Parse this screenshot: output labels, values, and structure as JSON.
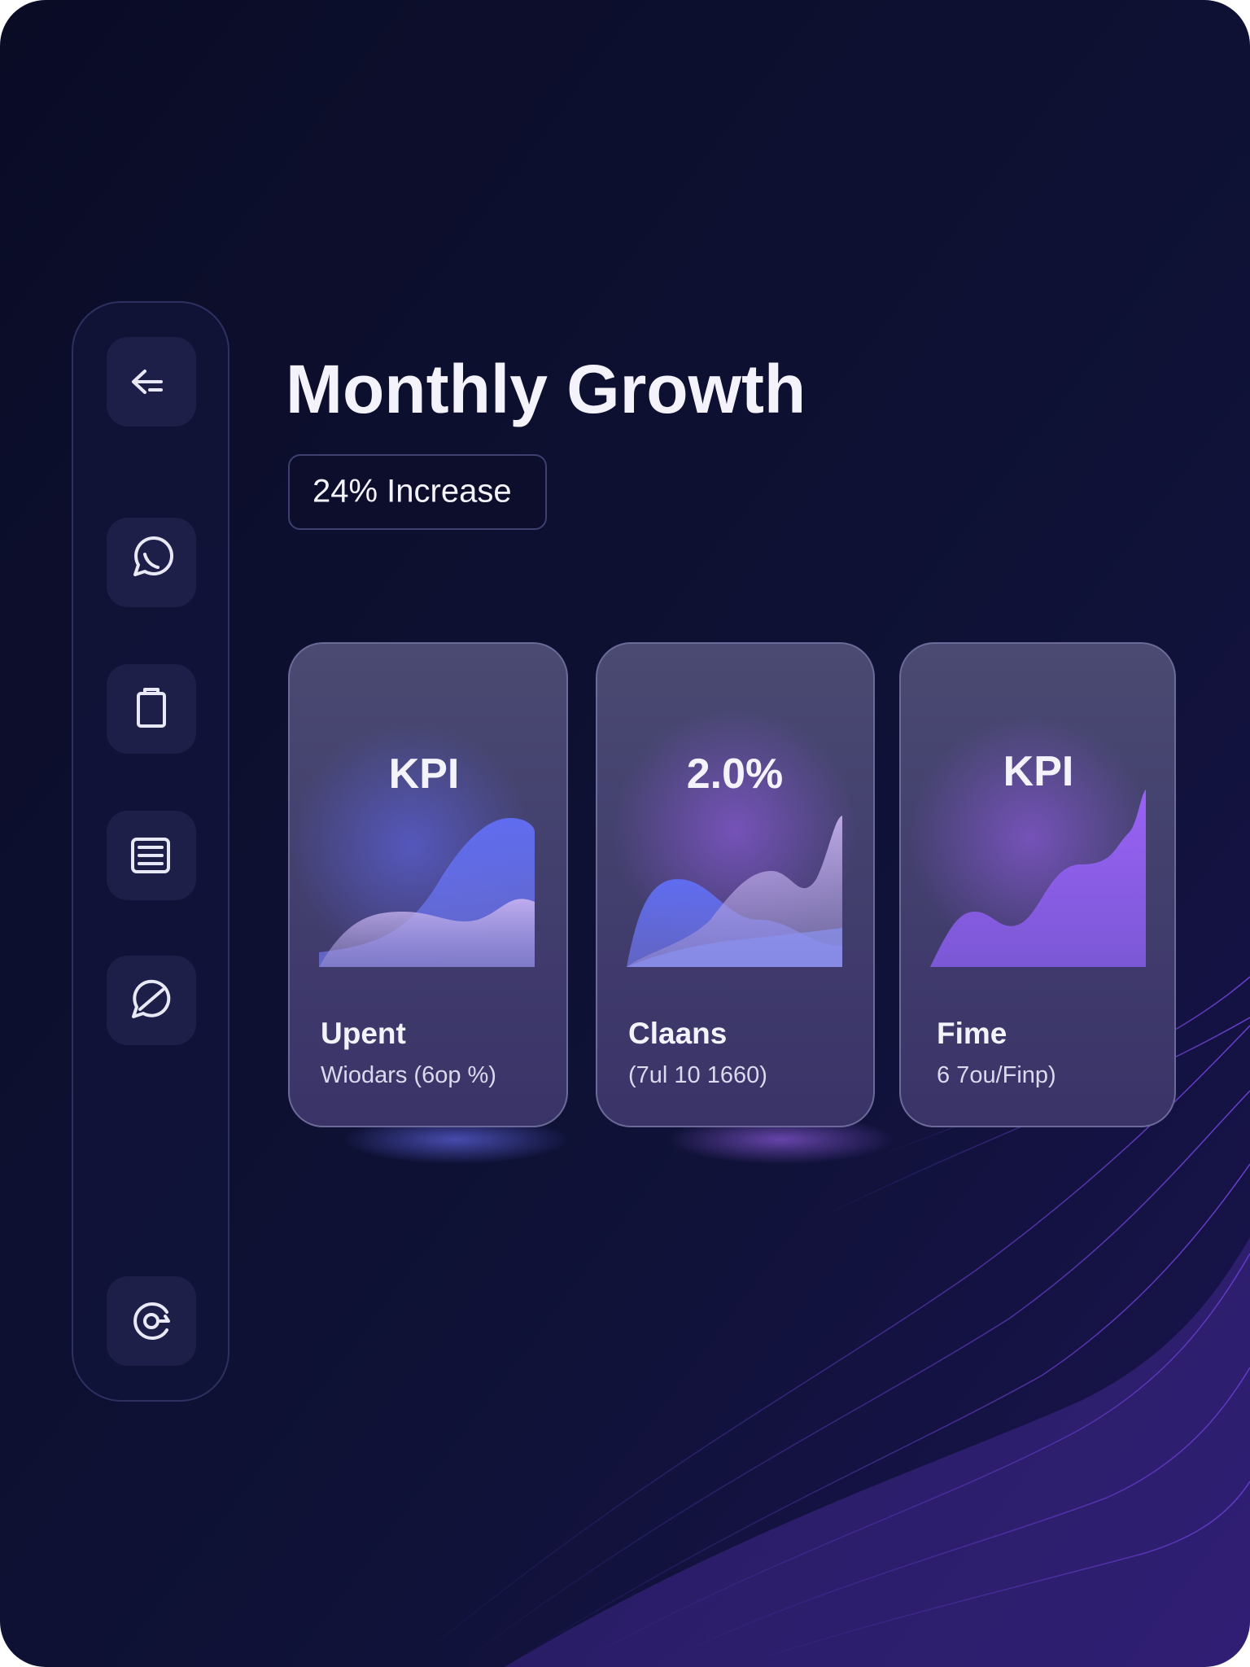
{
  "header": {
    "title": "Monthly Growth",
    "badge": "24% Increase"
  },
  "cards": [
    {
      "headline": "KPI",
      "label": "Upent",
      "sub": "Wiodars (6op %)"
    },
    {
      "headline": "2.0%",
      "label": "Claans",
      "sub": "(7ul 10 1660)"
    },
    {
      "headline": "KPI",
      "label": "Fime",
      "sub": "6 7ou/Finp)"
    }
  ]
}
